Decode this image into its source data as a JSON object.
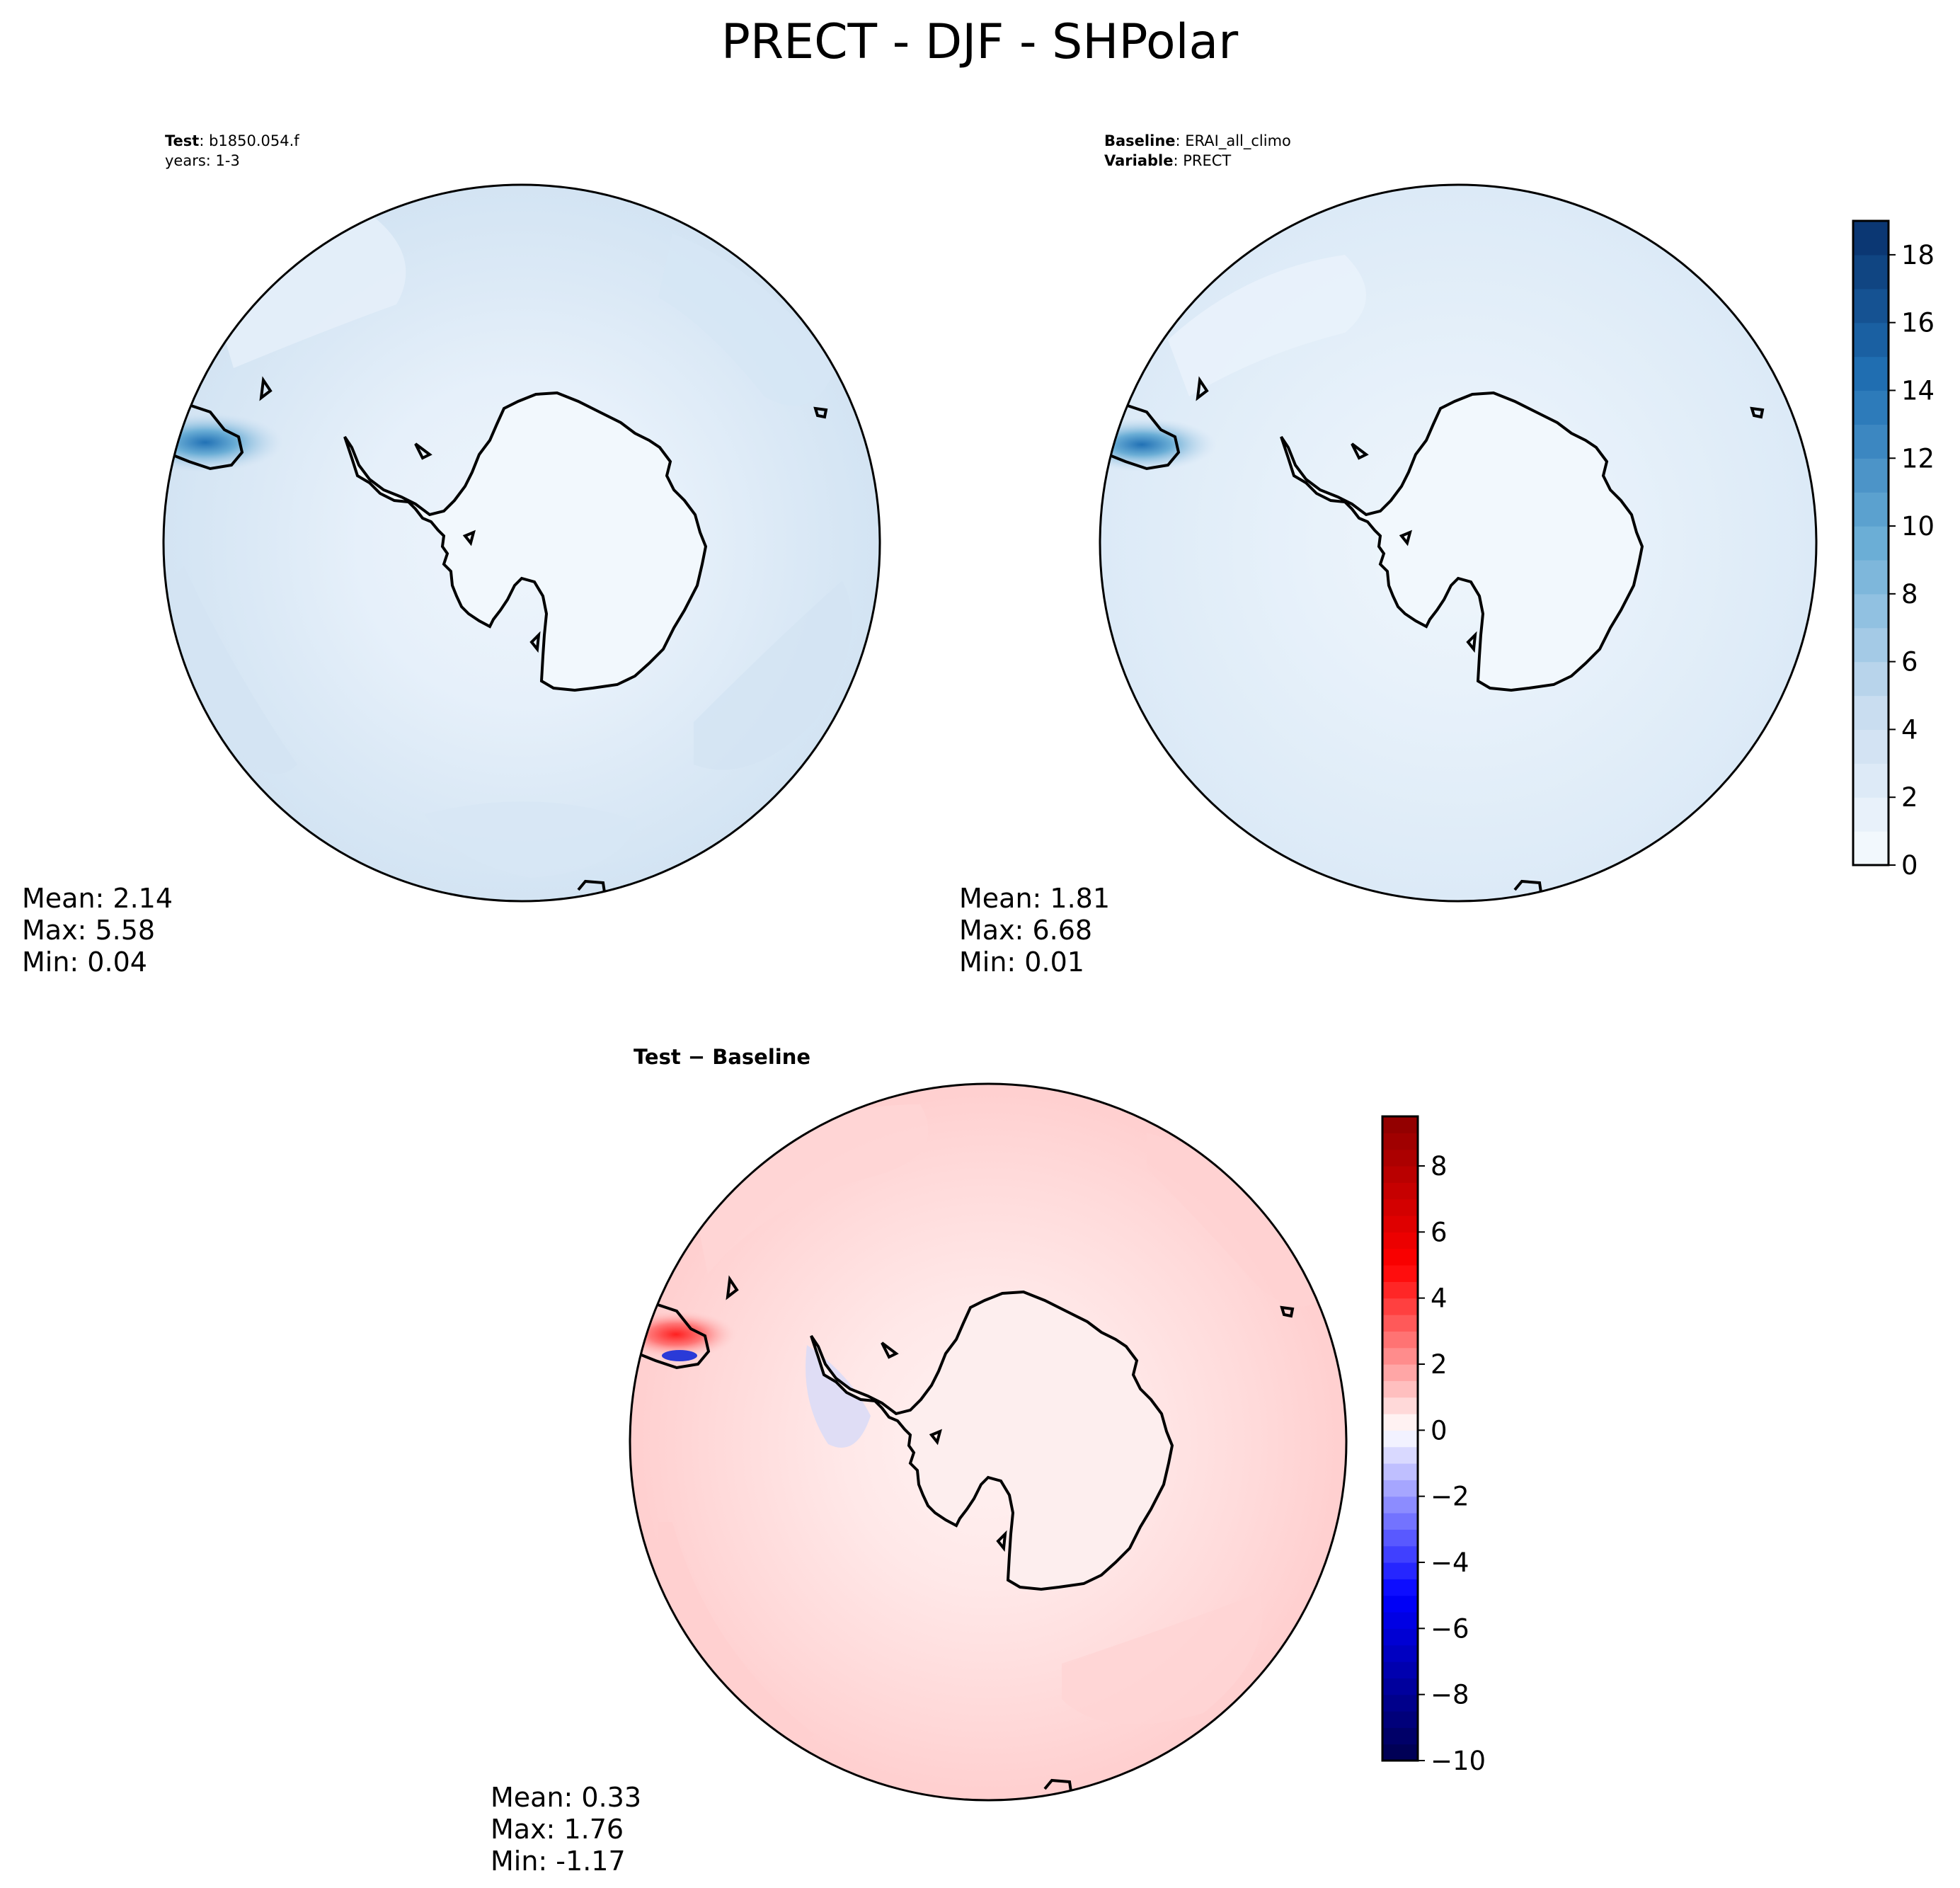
{
  "chart_data": {
    "type": "heatmap",
    "title": "PRECT - DJF - SHPolar",
    "panels": [
      {
        "id": "test",
        "label_lines": [
          {
            "key": "Test",
            "value": ": b1850.054.f"
          },
          {
            "key": "",
            "value": "years: 1-3"
          }
        ],
        "stats": [
          "Mean:  2.14",
          "Max:  5.58",
          "Min:  0.04"
        ],
        "colormap": "blues",
        "field_note": "precipitation mostly 1-4 over ocean, <1 over Antarctica, peak ~5.6 near Antarctic Peninsula"
      },
      {
        "id": "baseline",
        "label_lines": [
          {
            "key": "Baseline",
            "value": ": ERAI_all_climo"
          },
          {
            "key": "Variable",
            "value": ": PRECT"
          }
        ],
        "stats": [
          "Mean:  1.81",
          "Max:  6.68",
          "Min:  0.01"
        ],
        "colormap": "blues",
        "field_note": "smoother field 1-3 over ocean, <1 over Antarctica, peak ~6.7 near Antarctic Peninsula"
      },
      {
        "id": "diff",
        "label_lines": [
          {
            "key": "Test − Baseline",
            "value": ""
          }
        ],
        "stats": [
          "Mean:  0.33",
          "Max:  1.76",
          "Min: -1.17"
        ],
        "colormap": "seismic",
        "field_note": "mostly positive 0-1.5 over ocean, slightly negative near coast, dipole near Peninsula"
      }
    ],
    "colorbars": [
      {
        "id": "blues",
        "range": [
          0,
          19
        ],
        "levels": 19,
        "ticks": [
          0,
          2,
          4,
          6,
          8,
          10,
          12,
          14,
          16,
          18
        ],
        "tick_labels": [
          "0",
          "2",
          "4",
          "6",
          "8",
          "10",
          "12",
          "14",
          "16",
          "18"
        ]
      },
      {
        "id": "seismic",
        "range": [
          -10,
          9.5
        ],
        "levels": 39,
        "ticks": [
          -10,
          -8,
          -6,
          -4,
          -2,
          0,
          2,
          4,
          6,
          8
        ],
        "tick_labels": [
          "−10",
          "−8",
          "−6",
          "−4",
          "−2",
          "0",
          "2",
          "4",
          "6",
          "8"
        ]
      }
    ]
  }
}
